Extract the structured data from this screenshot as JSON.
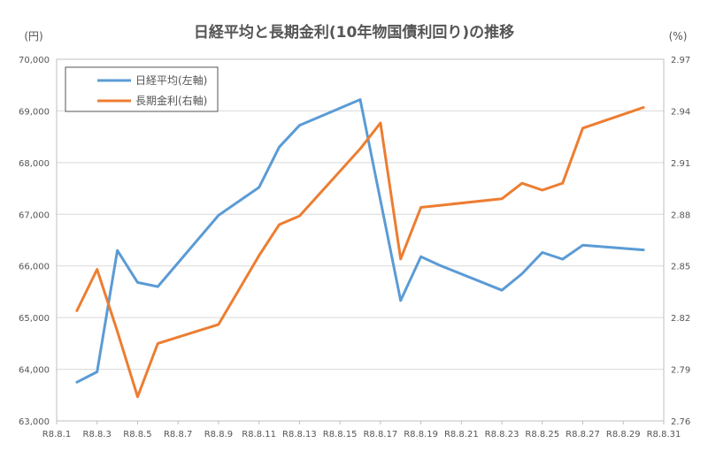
{
  "chart_data": {
    "type": "line",
    "title": "日経平均と長期金利(10年物国債利回り)の推移",
    "y_left_unit": "(円)",
    "y_right_unit": "(%)",
    "x_ticks": [
      "R8.8.1",
      "R8.8.3",
      "R8.8.5",
      "R8.8.7",
      "R8.8.9",
      "R8.8.11",
      "R8.8.13",
      "R8.8.15",
      "R8.8.17",
      "R8.8.19",
      "R8.8.21",
      "R8.8.23",
      "R8.8.25",
      "R8.8.27",
      "R8.8.29",
      "R8.8.31"
    ],
    "x_range": [
      1,
      31
    ],
    "y_left_range": [
      63000,
      70000
    ],
    "y_left_ticks": [
      "63,000",
      "64,000",
      "65,000",
      "66,000",
      "67,000",
      "68,000",
      "69,000",
      "70,000"
    ],
    "y_right_range": [
      2.76,
      2.97
    ],
    "y_right_ticks": [
      "2.76",
      "2.79",
      "2.82",
      "2.85",
      "2.88",
      "2.91",
      "2.94",
      "2.97"
    ],
    "grid": "horizontal",
    "legend_position": "top-left",
    "series": [
      {
        "name": "日経平均(左軸)",
        "axis": "left",
        "color": "#5b9bd5",
        "x": [
          2,
          3,
          4,
          5,
          6,
          9,
          11,
          12,
          13,
          16,
          18,
          19,
          20,
          23,
          24,
          25,
          26,
          27,
          30
        ],
        "y": [
          63750,
          63950,
          66300,
          65680,
          65600,
          66980,
          67520,
          68300,
          68720,
          69220,
          65330,
          66180,
          66000,
          65530,
          65850,
          66260,
          66130,
          66400,
          66310
        ]
      },
      {
        "name": "長期金利(右軸)",
        "axis": "right",
        "color": "#ed7d31",
        "x": [
          2,
          3,
          4,
          5,
          6,
          9,
          11,
          12,
          13,
          16,
          17,
          18,
          19,
          23,
          24,
          25,
          26,
          27,
          30
        ],
        "y": [
          2.824,
          2.848,
          2.812,
          2.774,
          2.805,
          2.816,
          2.856,
          2.874,
          2.879,
          2.918,
          2.933,
          2.854,
          2.884,
          2.889,
          2.898,
          2.894,
          2.898,
          2.93,
          2.942
        ]
      }
    ]
  }
}
